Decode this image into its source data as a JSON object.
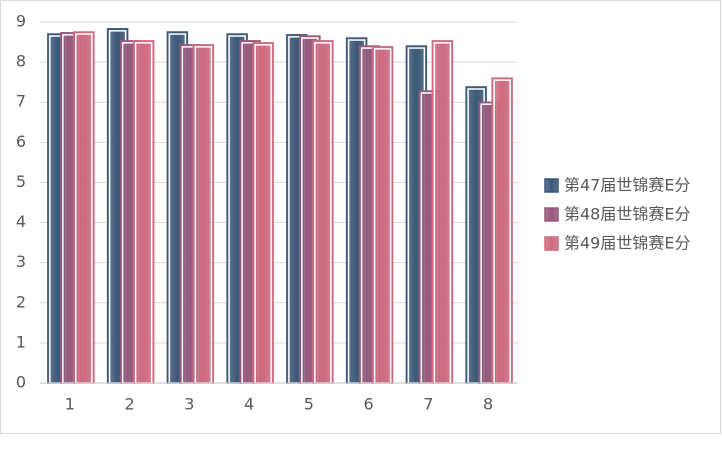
{
  "chart_data": {
    "type": "bar",
    "categories": [
      "1",
      "2",
      "3",
      "4",
      "5",
      "6",
      "7",
      "8"
    ],
    "series": [
      {
        "name": "第47届世锦赛E分",
        "color": "#3b5878",
        "values": [
          8.7,
          8.83,
          8.75,
          8.7,
          8.68,
          8.6,
          8.4,
          7.38
        ]
      },
      {
        "name": "第48届世锦赛E分",
        "color": "#96597c",
        "values": [
          8.73,
          8.53,
          8.43,
          8.53,
          8.65,
          8.4,
          7.28,
          7.0
        ]
      },
      {
        "name": "第49届世锦赛E分",
        "color": "#cd6a80",
        "values": [
          8.75,
          8.53,
          8.43,
          8.48,
          8.53,
          8.38,
          8.53,
          7.6
        ]
      }
    ],
    "ylim": [
      0,
      9
    ],
    "yticks": [
      0,
      1,
      2,
      3,
      4,
      5,
      6,
      7,
      8,
      9
    ],
    "grid": true,
    "legend": "right"
  }
}
